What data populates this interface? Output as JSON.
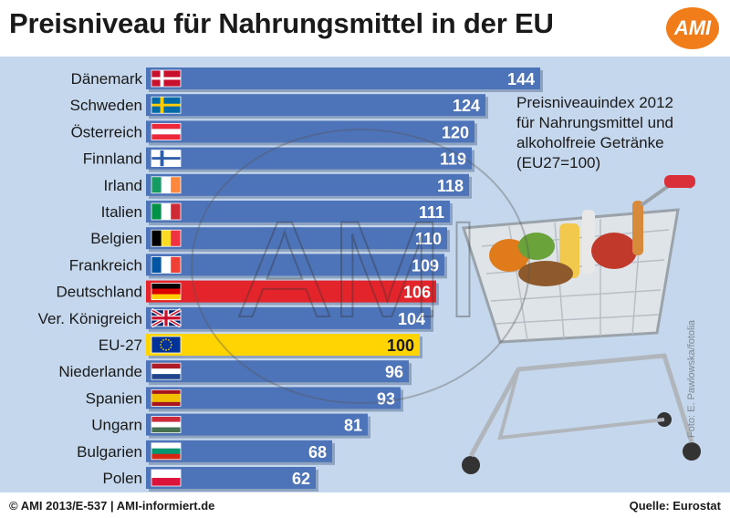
{
  "title": "Preisniveau für Nahrungsmittel in der EU",
  "logo_text": "AMI",
  "watermark_text": "AMI",
  "note_lines": [
    "Preisniveauindex 2012",
    "für Nahrungsmittel und",
    "alkoholfreie Getränke",
    "(EU27=100)"
  ],
  "photo_credit": "Foto: E. Pawlowska/fotolia",
  "footer": {
    "left": "© AMI 2013/E-537 | AMI-informiert.de",
    "right": "Quelle: Eurostat"
  },
  "colors": {
    "bar_default": "#4d73b8",
    "bar_germany": "#e3242b",
    "bar_eu": "#ffd400",
    "panel_bg": "#c5d7ec",
    "logo_orange": "#f07d1a"
  },
  "chart_data": {
    "type": "bar",
    "orientation": "horizontal",
    "categories": [
      "Dänemark",
      "Schweden",
      "Österreich",
      "Finnland",
      "Irland",
      "Italien",
      "Belgien",
      "Frankreich",
      "Deutschland",
      "Ver. Königreich",
      "EU-27",
      "Niederlande",
      "Spanien",
      "Ungarn",
      "Bulgarien",
      "Polen"
    ],
    "values": [
      144,
      124,
      120,
      119,
      118,
      111,
      110,
      109,
      106,
      104,
      100,
      96,
      93,
      81,
      68,
      62
    ],
    "flags": [
      "denmark-flag",
      "sweden-flag",
      "austria-flag",
      "finland-flag",
      "ireland-flag",
      "italy-flag",
      "belgium-flag",
      "france-flag",
      "germany-flag",
      "uk-flag",
      "eu-flag",
      "netherlands-flag",
      "spain-flag",
      "hungary-flag",
      "bulgaria-flag",
      "poland-flag"
    ],
    "highlight": {
      "Deutschland": "red",
      "EU-27": "yellow"
    },
    "xlim": [
      0,
      144
    ],
    "title": "",
    "xlabel": "",
    "ylabel": "",
    "grid": false,
    "legend": "none"
  }
}
